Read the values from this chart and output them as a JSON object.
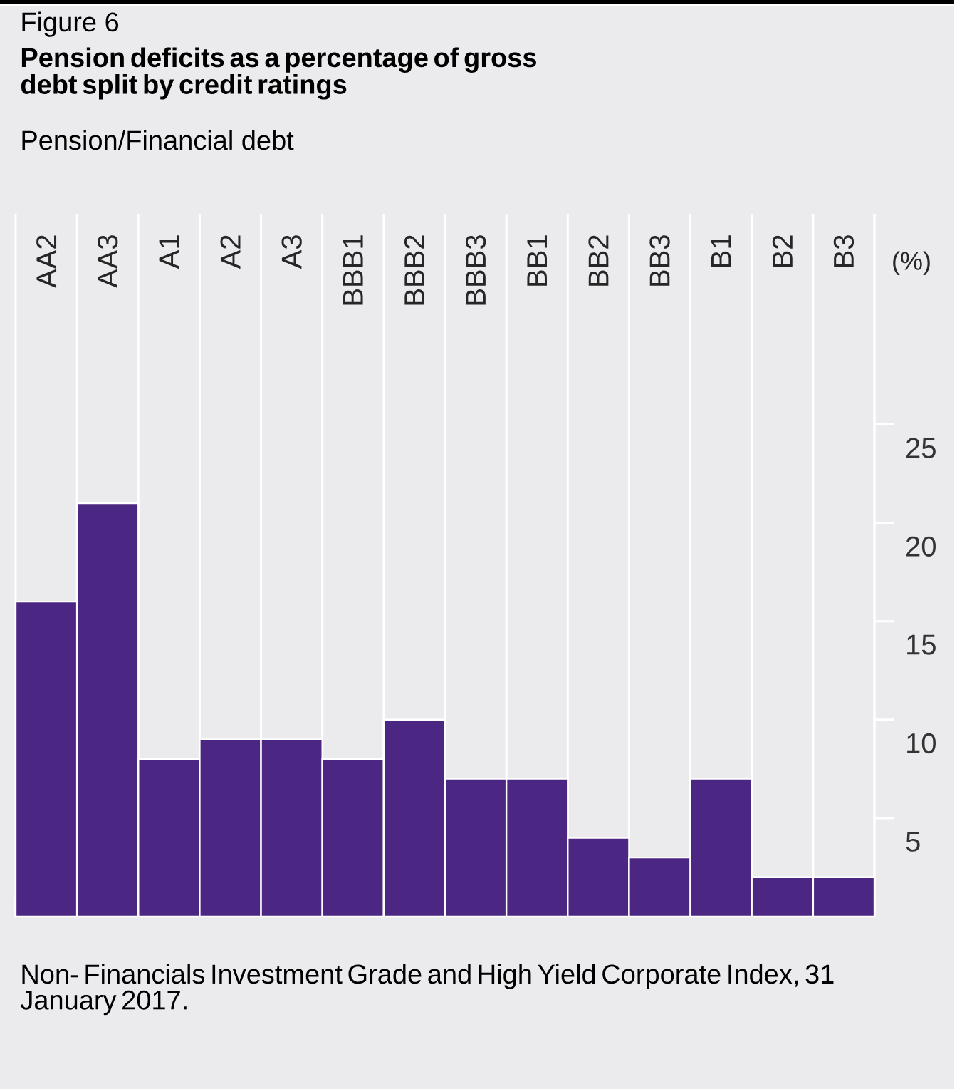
{
  "chart_data": {
    "type": "bar",
    "title": "Pension deficits as a percentage of gross debt split by credit ratings",
    "subtitle": "Pension/Financial debt",
    "ylabel": "(%)",
    "annotations": [
      "Figure 6",
      "Non- Financials Investment Grade and High Yield Corporate Index, 31 January 2017."
    ],
    "categories": [
      "AA2",
      "AA3",
      "A1",
      "A2",
      "A3",
      "BBB1",
      "BBB2",
      "BBB3",
      "BB1",
      "BB2",
      "BB3",
      "B1",
      "B2",
      "B3"
    ],
    "values": [
      16,
      21,
      8,
      9,
      9,
      8,
      10,
      7,
      7,
      4,
      3,
      7,
      2,
      2
    ],
    "color": "#4b2682",
    "ylim": [
      0,
      35.7
    ],
    "yticks": [
      5,
      10,
      15,
      20,
      25
    ],
    "grid": "x"
  }
}
